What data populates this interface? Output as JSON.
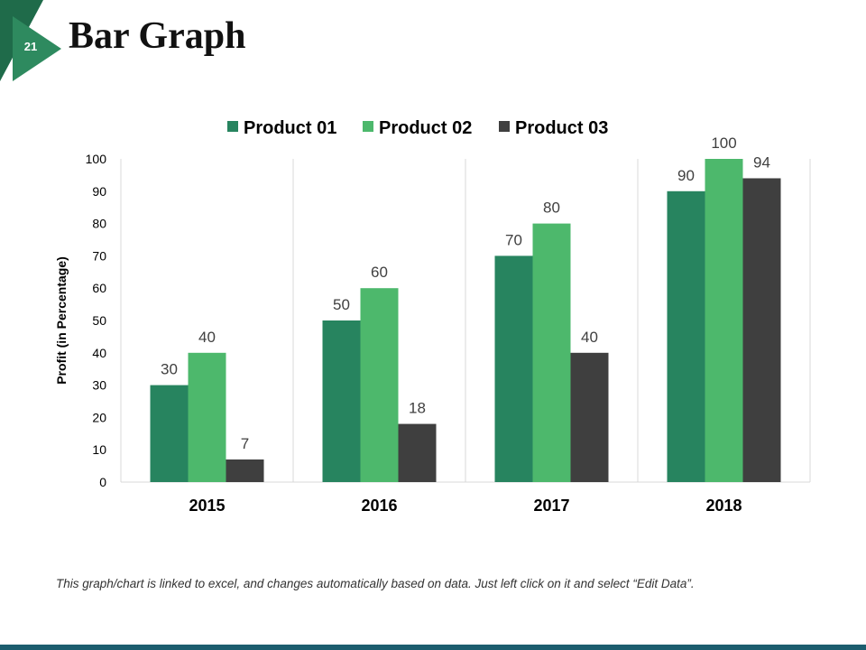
{
  "slide": {
    "number": "21",
    "title": "Bar Graph"
  },
  "colors": {
    "product_01": "#27845f",
    "product_02": "#4db86c",
    "product_03": "#3f3f3f",
    "badge_dark": "#1f6b4a",
    "badge_light": "#2e8a5f",
    "bottom_bar": "#1c5d6e",
    "grid": "#d9d9d9",
    "text": "#404040"
  },
  "chart_data": {
    "type": "bar",
    "title": "",
    "xlabel": "",
    "ylabel": "Profit (in Percentage)",
    "categories": [
      "2015",
      "2016",
      "2017",
      "2018"
    ],
    "series": [
      {
        "name": "Product 01",
        "values": [
          30,
          50,
          70,
          90
        ]
      },
      {
        "name": "Product 02",
        "values": [
          40,
          60,
          80,
          100
        ]
      },
      {
        "name": "Product 03",
        "values": [
          7,
          18,
          40,
          94
        ]
      }
    ],
    "ylim": [
      0,
      100
    ],
    "yticks": [
      "0",
      "10",
      "20",
      "30",
      "40",
      "50",
      "60",
      "70",
      "80",
      "90",
      "100"
    ],
    "legend": "top-center",
    "grid": "vertical category separators"
  },
  "footnote": "This graph/chart is linked to excel, and changes automatically based on data. Just left click on it and select “Edit Data”."
}
